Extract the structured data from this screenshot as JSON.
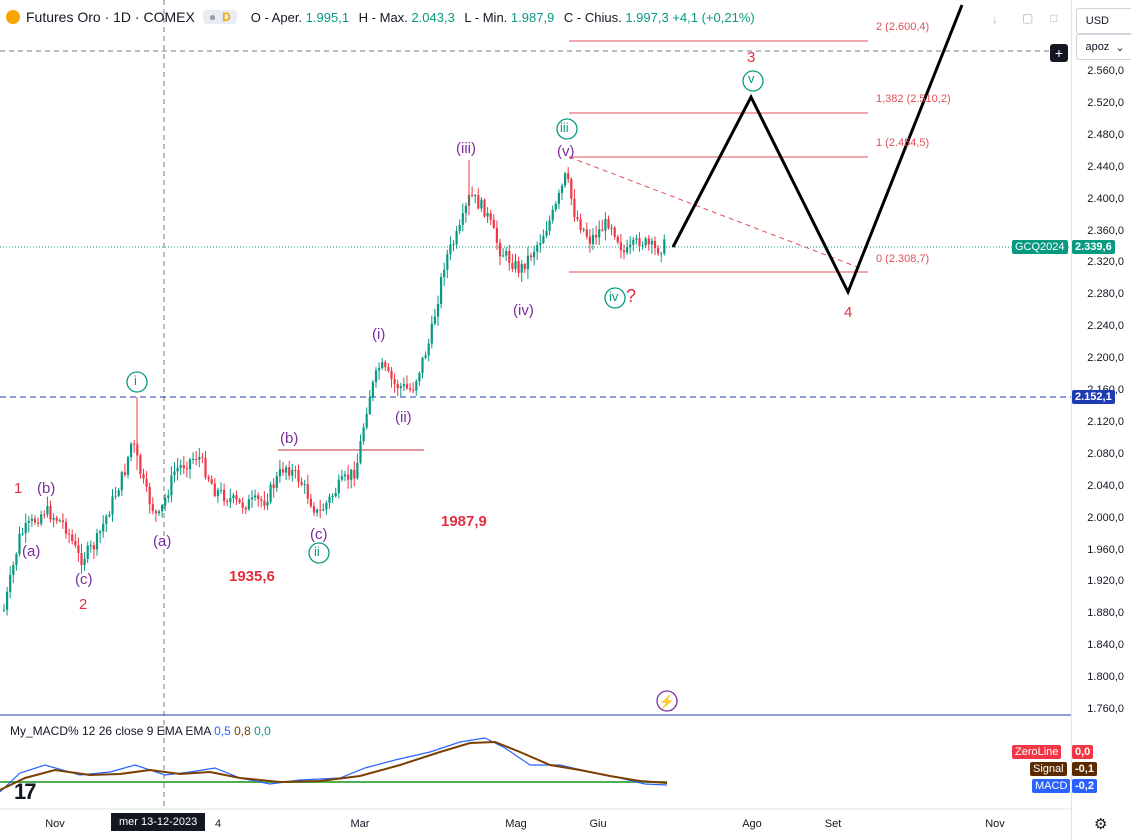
{
  "header": {
    "title": "Futures Oro · 1D · COMEX",
    "pill_code": "D",
    "ohlc": [
      {
        "k": "O - Aper.",
        "v": "1.995,1"
      },
      {
        "k": "H - Max.",
        "v": "2.043,3"
      },
      {
        "k": "L - Min.",
        "v": "1.987,9"
      },
      {
        "k": "C - Chius.",
        "v": "1.997,3"
      }
    ],
    "change": "+4,1 (+0,21%)"
  },
  "currency_select": "USD",
  "scale_select": "apoz",
  "price_axis": [
    "2.560,0",
    "2.520,0",
    "2.480,0",
    "2.440,0",
    "2.400,0",
    "2.360,0",
    "2.320,0",
    "2.280,0",
    "2.240,0",
    "2.200,0",
    "2.160,0",
    "2.120,0",
    "2.080,0",
    "2.040,0",
    "2.000,0",
    "1.960,0",
    "1.920,0",
    "1.880,0",
    "1.840,0",
    "1.800,0",
    "1.760,0"
  ],
  "time_axis": [
    "Nov",
    "4",
    "Mar",
    "Mag",
    "Giu",
    "Ago",
    "Set",
    "Nov"
  ],
  "crosshair_date": "mer 13-12-2023",
  "badges": {
    "symbol": "GCQ2024",
    "last_price": "2.339,6",
    "hline_price": "2.152,1",
    "zeroline_label": "ZeroLine",
    "zeroline_value": "0,0",
    "signal_label": "Signal",
    "signal_value": "-0,1",
    "macd_label": "MACD",
    "macd_value": "-0,2"
  },
  "fib_levels": [
    "2 (2.600,4)",
    "1,382 (2.510,2)",
    "1 (2.454,5)",
    "0 (2.308,7)"
  ],
  "wave_labels": {
    "red": [
      "1",
      "2",
      "3",
      "4",
      "?"
    ],
    "purple": [
      "(a)",
      "(b)",
      "(c)",
      "(a)",
      "(b)",
      "(c)",
      "(i)",
      "(ii)",
      "(iii)",
      "(iv)",
      "(v)"
    ],
    "green_circled": [
      "i",
      "ii",
      "iii",
      "iv",
      "v"
    ],
    "price_notes": [
      "1935,6",
      "1987,9"
    ]
  },
  "macd_legend": {
    "name": "My_MACD% 12 26 close 9 EMA EMA",
    "v1": "0,5",
    "v2": "0,8",
    "v3": "0,0"
  },
  "colors": {
    "up": "#089981",
    "down": "#f23645",
    "wave_purple": "#7b2d9e",
    "wave_green": "#089981",
    "wave_red": "#e03040",
    "fib": "#e0505a",
    "macd_line": "#2962ff",
    "signal_line": "#7b3f00",
    "zero_line": "#4caf50"
  }
}
